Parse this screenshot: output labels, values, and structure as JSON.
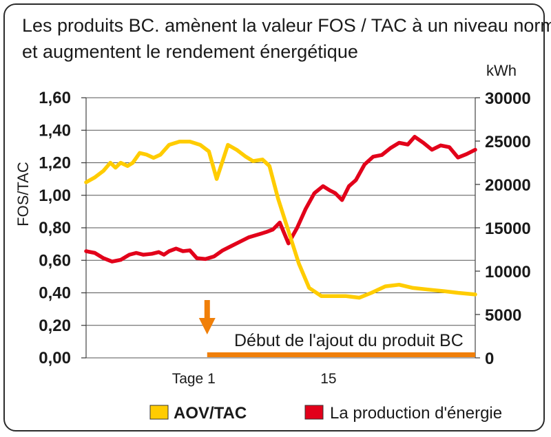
{
  "chart_data": {
    "type": "line",
    "title": "Les produits BC. amènent la valeur FOS / TAC à un niveau normal et augmentent le rendement énergétique",
    "title_lines": [
      "Les produits BC. amènent la valeur FOS / TAC à un niveau normal",
      "et augmentent le rendement énergétique"
    ],
    "ylabel_left": "FOS/TAC",
    "ylabel_right": "kWh",
    "ylim_left": [
      0,
      1.6
    ],
    "ylim_right": [
      0,
      30000
    ],
    "yticks_left": [
      "1,60",
      "1,40",
      "1,20",
      "1,00",
      "0,80",
      "0,60",
      "0,40",
      "0,20",
      "0,00"
    ],
    "yticks_left_values": [
      1.6,
      1.4,
      1.2,
      1.0,
      0.8,
      0.6,
      0.4,
      0.2,
      0.0
    ],
    "yticks_right": [
      "30000",
      "25000",
      "20000",
      "15000",
      "10000",
      "5000",
      "0"
    ],
    "yticks_right_values": [
      30000,
      25000,
      20000,
      15000,
      10000,
      5000,
      0
    ],
    "xlim": [
      -13,
      32
    ],
    "x_labels": [
      {
        "x": 1,
        "text": "Tage 1"
      },
      {
        "x": 15,
        "text": "15"
      }
    ],
    "grid": true,
    "legend_position": "bottom",
    "series": [
      {
        "name": "AOV/TAC",
        "axis": "left",
        "color": "#ffcc00",
        "points": [
          [
            -13,
            1.08
          ],
          [
            -12,
            1.11
          ],
          [
            -11,
            1.15
          ],
          [
            -10.2,
            1.2
          ],
          [
            -9.6,
            1.17
          ],
          [
            -9,
            1.2
          ],
          [
            -8.2,
            1.18
          ],
          [
            -7.6,
            1.2
          ],
          [
            -6.8,
            1.26
          ],
          [
            -6,
            1.25
          ],
          [
            -5.2,
            1.23
          ],
          [
            -4.4,
            1.25
          ],
          [
            -3.4,
            1.31
          ],
          [
            -2.2,
            1.33
          ],
          [
            -1,
            1.33
          ],
          [
            0.2,
            1.31
          ],
          [
            1.2,
            1.27
          ],
          [
            2.1,
            1.1
          ],
          [
            3.4,
            1.31
          ],
          [
            4.4,
            1.28
          ],
          [
            5.4,
            1.24
          ],
          [
            6.3,
            1.21
          ],
          [
            7.4,
            1.22
          ],
          [
            8.2,
            1.18
          ],
          [
            9.2,
            0.98
          ],
          [
            10.4,
            0.78
          ],
          [
            11.6,
            0.58
          ],
          [
            12.8,
            0.43
          ],
          [
            14.2,
            0.38
          ],
          [
            15.6,
            0.38
          ],
          [
            17,
            0.38
          ],
          [
            18.6,
            0.37
          ],
          [
            20,
            0.4
          ],
          [
            21.6,
            0.44
          ],
          [
            23.2,
            0.45
          ],
          [
            24.8,
            0.43
          ],
          [
            26.6,
            0.42
          ],
          [
            28.4,
            0.41
          ],
          [
            30,
            0.4
          ],
          [
            32,
            0.39
          ]
        ]
      },
      {
        "name": "La production d'énergie",
        "axis": "right",
        "color": "#e2001a",
        "points": [
          [
            -13,
            12300
          ],
          [
            -12,
            12100
          ],
          [
            -11,
            11500
          ],
          [
            -10,
            11100
          ],
          [
            -9,
            11300
          ],
          [
            -8,
            11900
          ],
          [
            -7.2,
            12100
          ],
          [
            -6.4,
            11900
          ],
          [
            -5.4,
            12000
          ],
          [
            -4.6,
            12200
          ],
          [
            -4,
            11900
          ],
          [
            -3.4,
            12300
          ],
          [
            -2.6,
            12600
          ],
          [
            -1.8,
            12300
          ],
          [
            -1,
            12400
          ],
          [
            -0.2,
            11500
          ],
          [
            0.8,
            11400
          ],
          [
            1.8,
            11700
          ],
          [
            2.8,
            12400
          ],
          [
            3.8,
            12900
          ],
          [
            4.8,
            13400
          ],
          [
            5.8,
            13900
          ],
          [
            6.8,
            14200
          ],
          [
            7.8,
            14500
          ],
          [
            8.6,
            14800
          ],
          [
            9.4,
            15600
          ],
          [
            10.4,
            13200
          ],
          [
            11.4,
            15000
          ],
          [
            12.4,
            17200
          ],
          [
            13.4,
            19000
          ],
          [
            14.4,
            19800
          ],
          [
            15.2,
            19300
          ],
          [
            15.8,
            19000
          ],
          [
            16.6,
            18200
          ],
          [
            17.4,
            19800
          ],
          [
            18.2,
            20500
          ],
          [
            19.2,
            22300
          ],
          [
            20.2,
            23200
          ],
          [
            21.2,
            23400
          ],
          [
            22.2,
            24200
          ],
          [
            23.2,
            24800
          ],
          [
            24.2,
            24600
          ],
          [
            25,
            25500
          ],
          [
            26,
            24800
          ],
          [
            27,
            24000
          ],
          [
            28,
            24500
          ],
          [
            29,
            24300
          ],
          [
            30,
            23100
          ],
          [
            31,
            23500
          ],
          [
            32,
            24000
          ]
        ]
      }
    ],
    "annotations": [
      {
        "text": "Début de l'ajout du produit BC",
        "x": 1,
        "color": "#f07f09",
        "kind": "arrow-and-bar",
        "bar_from": 1,
        "bar_to": 32
      }
    ]
  }
}
